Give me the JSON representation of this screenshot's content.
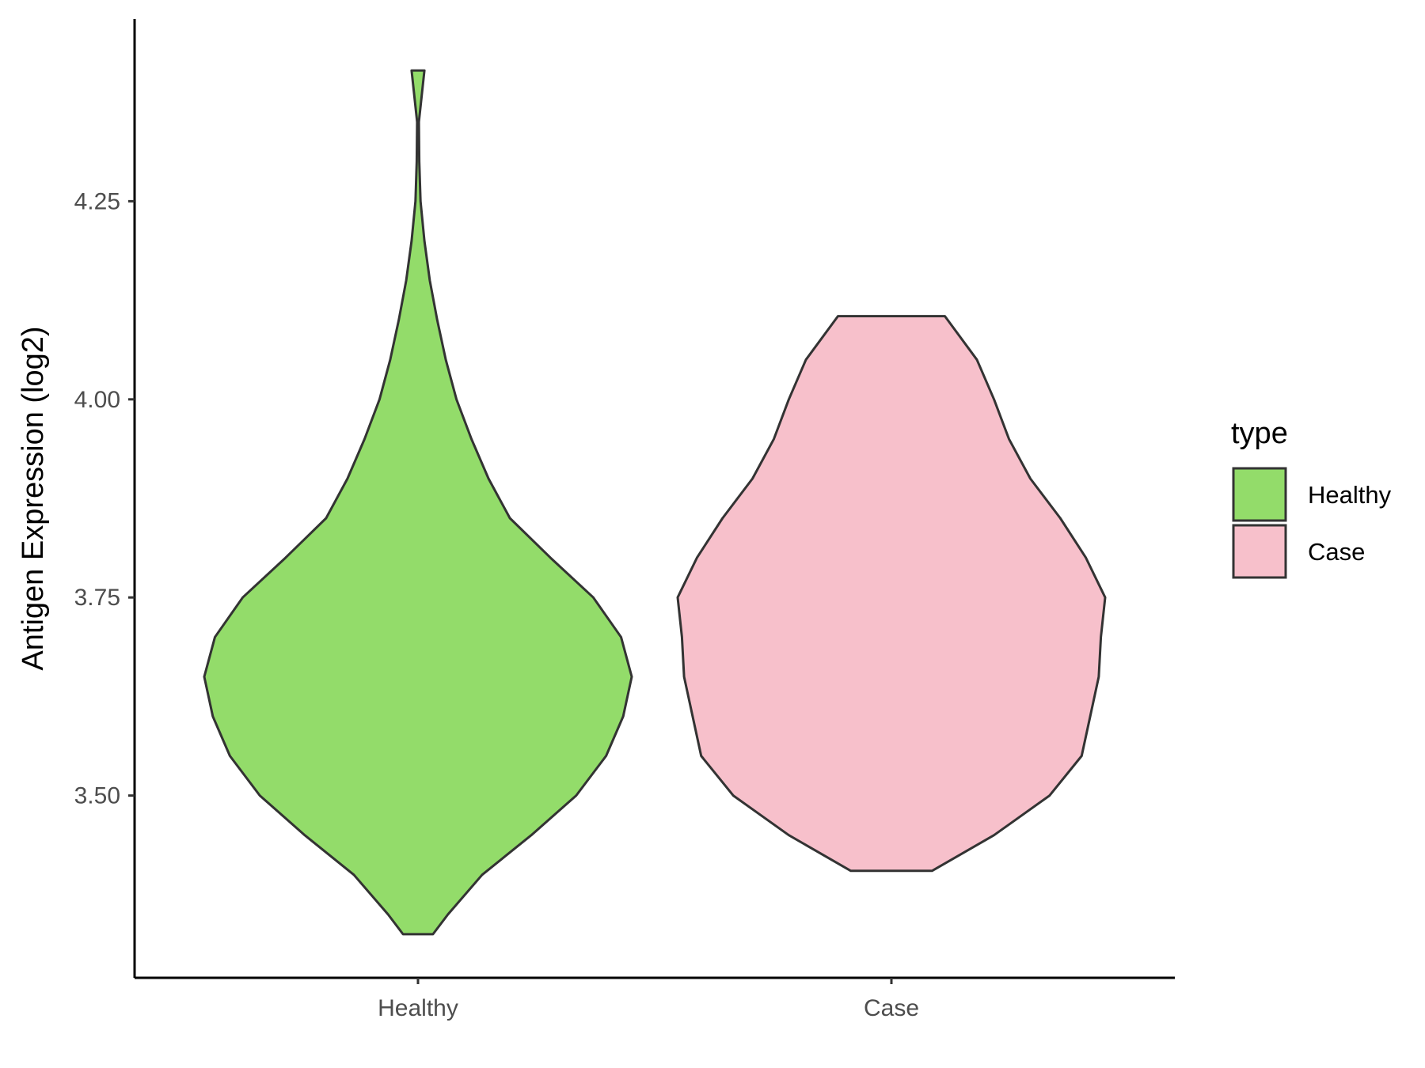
{
  "chart_data": {
    "type": "violin",
    "title": "",
    "xlabel": "",
    "ylabel": "Antigen Expression (log2)",
    "categories": [
      "Healthy",
      "Case"
    ],
    "ylim": [
      3.27,
      4.48
    ],
    "y_ticks": [
      3.5,
      3.75,
      4.0,
      4.25
    ],
    "y_tick_labels": [
      "3.50",
      "3.75",
      "4.00",
      "4.25"
    ],
    "grid": false,
    "legend": {
      "title": "type",
      "position": "right",
      "entries": [
        {
          "label": "Healthy",
          "color": "#93dc6a"
        },
        {
          "label": "Case",
          "color": "#f7c0cb"
        }
      ]
    },
    "series": [
      {
        "name": "Healthy",
        "color": "#93dc6a",
        "min": 3.325,
        "max": 4.415,
        "density": [
          [
            3.325,
            0.07
          ],
          [
            3.35,
            0.14
          ],
          [
            3.4,
            0.3
          ],
          [
            3.45,
            0.53
          ],
          [
            3.5,
            0.74
          ],
          [
            3.55,
            0.88
          ],
          [
            3.6,
            0.96
          ],
          [
            3.65,
            1.0
          ],
          [
            3.7,
            0.95
          ],
          [
            3.75,
            0.82
          ],
          [
            3.8,
            0.62
          ],
          [
            3.85,
            0.43
          ],
          [
            3.9,
            0.33
          ],
          [
            3.95,
            0.25
          ],
          [
            4.0,
            0.18
          ],
          [
            4.05,
            0.13
          ],
          [
            4.1,
            0.09
          ],
          [
            4.15,
            0.055
          ],
          [
            4.2,
            0.03
          ],
          [
            4.25,
            0.012
          ],
          [
            4.3,
            0.006
          ],
          [
            4.35,
            0.004
          ],
          [
            4.415,
            0.03
          ]
        ]
      },
      {
        "name": "Case",
        "color": "#f7c0cb",
        "min": 3.405,
        "max": 4.105,
        "density": [
          [
            3.405,
            0.19
          ],
          [
            3.45,
            0.48
          ],
          [
            3.5,
            0.74
          ],
          [
            3.55,
            0.89
          ],
          [
            3.6,
            0.93
          ],
          [
            3.65,
            0.97
          ],
          [
            3.7,
            0.98
          ],
          [
            3.75,
            1.0
          ],
          [
            3.8,
            0.91
          ],
          [
            3.85,
            0.79
          ],
          [
            3.9,
            0.65
          ],
          [
            3.95,
            0.55
          ],
          [
            4.0,
            0.48
          ],
          [
            4.05,
            0.4
          ],
          [
            4.105,
            0.25
          ]
        ]
      }
    ]
  }
}
